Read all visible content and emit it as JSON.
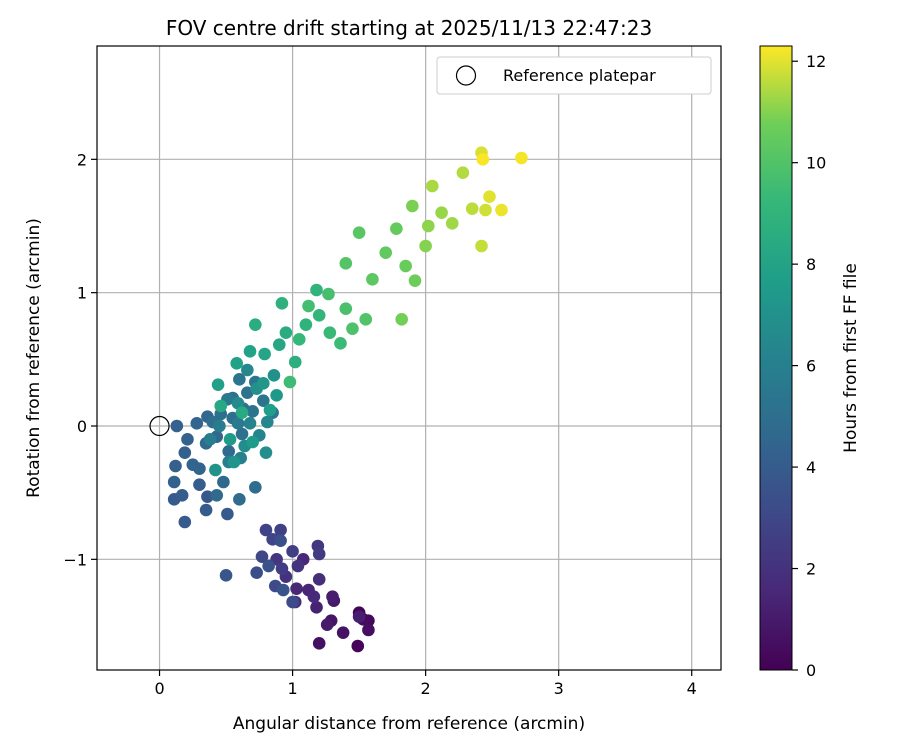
{
  "chart_data": {
    "type": "scatter",
    "title": "FOV centre drift starting at 2025/11/13 22:47:23",
    "xlabel": "Angular distance from reference (arcmin)",
    "ylabel": "Rotation from reference (arcmin)",
    "xlim": [
      -0.47,
      4.22
    ],
    "ylim": [
      -1.83,
      2.85
    ],
    "xticks": [
      0,
      1,
      2,
      3,
      4
    ],
    "yticks": [
      -1,
      0,
      1,
      2
    ],
    "xtick_labels": [
      "0",
      "1",
      "2",
      "3",
      "4"
    ],
    "ytick_labels": [
      "−1",
      "0",
      "1",
      "2"
    ],
    "grid": true,
    "legend": {
      "position": "top-right",
      "label": "Reference platepar"
    },
    "reference_point": {
      "x": 0,
      "y": 0
    },
    "colorbar": {
      "label": "Hours from first FF file",
      "colormap": "viridis",
      "range": [
        0,
        12.3
      ],
      "ticks": [
        0,
        2,
        4,
        6,
        8,
        10,
        12
      ],
      "tick_labels": [
        "0",
        "2",
        "4",
        "6",
        "8",
        "10",
        "12"
      ]
    },
    "points": [
      [
        1.5,
        -1.4,
        0.1
      ],
      [
        1.49,
        -1.65,
        0.2
      ],
      [
        1.57,
        -1.46,
        0.3
      ],
      [
        1.53,
        -1.45,
        0.4
      ],
      [
        1.57,
        -1.53,
        0.5
      ],
      [
        1.2,
        -1.63,
        0.6
      ],
      [
        1.38,
        -1.55,
        0.7
      ],
      [
        1.29,
        -1.46,
        0.8
      ],
      [
        1.31,
        -1.31,
        0.9
      ],
      [
        1.26,
        -1.49,
        1.0
      ],
      [
        1.3,
        -1.28,
        1.1
      ],
      [
        1.5,
        -1.43,
        1.2
      ],
      [
        1.18,
        -1.36,
        1.3
      ],
      [
        1.12,
        -1.23,
        1.4
      ],
      [
        1.03,
        -1.22,
        1.5
      ],
      [
        1.08,
        -1.0,
        1.6
      ],
      [
        1.16,
        -1.28,
        1.7
      ],
      [
        1.2,
        -1.15,
        1.8
      ],
      [
        1.02,
        -1.32,
        1.9
      ],
      [
        0.95,
        -1.13,
        2.0
      ],
      [
        1.04,
        -1.05,
        2.1
      ],
      [
        0.88,
        -1.0,
        2.2
      ],
      [
        1.19,
        -0.9,
        2.3
      ],
      [
        1.2,
        -0.96,
        2.4
      ],
      [
        0.92,
        -1.07,
        2.5
      ],
      [
        1.0,
        -0.94,
        2.6
      ],
      [
        0.91,
        -0.78,
        2.7
      ],
      [
        0.8,
        -0.78,
        2.8
      ],
      [
        0.85,
        -0.85,
        2.9
      ],
      [
        0.77,
        -0.98,
        3.0
      ],
      [
        0.87,
        -1.2,
        3.1
      ],
      [
        1.0,
        -1.32,
        3.2
      ],
      [
        0.73,
        -1.1,
        3.3
      ],
      [
        0.91,
        -0.86,
        3.4
      ],
      [
        0.82,
        -1.05,
        3.5
      ],
      [
        0.93,
        -1.23,
        3.6
      ],
      [
        0.5,
        -1.12,
        3.7
      ],
      [
        0.36,
        -0.53,
        3.8
      ],
      [
        0.51,
        -0.66,
        3.9
      ],
      [
        0.11,
        -0.55,
        3.9
      ],
      [
        0.19,
        -0.72,
        3.95
      ],
      [
        0.35,
        -0.63,
        4.0
      ],
      [
        0.17,
        -0.52,
        4.05
      ],
      [
        0.3,
        -0.44,
        4.1
      ],
      [
        0.12,
        -0.3,
        4.15
      ],
      [
        0.19,
        -0.2,
        4.2
      ],
      [
        0.13,
        0.0,
        4.25
      ],
      [
        0.21,
        -0.1,
        4.3
      ],
      [
        0.11,
        -0.42,
        4.35
      ],
      [
        0.25,
        -0.29,
        4.4
      ],
      [
        0.3,
        -0.32,
        4.45
      ],
      [
        0.28,
        0.02,
        4.5
      ],
      [
        0.36,
        0.07,
        4.55
      ],
      [
        0.43,
        -0.08,
        4.6
      ],
      [
        0.35,
        -0.13,
        4.65
      ],
      [
        0.48,
        -0.42,
        4.7
      ],
      [
        0.52,
        -0.19,
        4.75
      ],
      [
        0.43,
        -0.52,
        4.8
      ],
      [
        0.6,
        -0.55,
        4.85
      ],
      [
        0.72,
        -0.46,
        4.9
      ],
      [
        0.4,
        0.03,
        4.95
      ],
      [
        0.55,
        0.06,
        5.0
      ],
      [
        0.46,
        0.09,
        5.05
      ],
      [
        0.62,
        -0.06,
        5.1
      ],
      [
        0.55,
        0.21,
        5.15
      ],
      [
        0.63,
        0.13,
        5.2
      ],
      [
        0.7,
        0.11,
        5.25
      ],
      [
        0.78,
        0.19,
        5.3
      ],
      [
        0.66,
        0.25,
        5.35
      ],
      [
        0.6,
        0.35,
        5.4
      ],
      [
        0.72,
        0.33,
        5.45
      ],
      [
        0.85,
        0.1,
        5.5
      ],
      [
        0.59,
        0.02,
        5.6
      ],
      [
        0.51,
        0.2,
        5.7
      ],
      [
        0.45,
        0.0,
        5.8
      ],
      [
        0.38,
        -0.1,
        5.9
      ],
      [
        0.52,
        -0.27,
        6.0
      ],
      [
        0.61,
        -0.24,
        6.1
      ],
      [
        0.68,
        0.02,
        6.2
      ],
      [
        0.75,
        -0.07,
        6.3
      ],
      [
        0.81,
        0.03,
        6.4
      ],
      [
        0.66,
        0.42,
        6.5
      ],
      [
        0.59,
        0.17,
        6.6
      ],
      [
        0.64,
        -0.15,
        6.7
      ],
      [
        0.8,
        -0.2,
        6.8
      ],
      [
        0.73,
        0.28,
        6.9
      ],
      [
        0.86,
        0.38,
        7.0
      ],
      [
        0.42,
        -0.33,
        7.1
      ],
      [
        0.56,
        -0.27,
        7.2
      ],
      [
        0.78,
        0.32,
        7.3
      ],
      [
        0.88,
        0.23,
        7.4
      ],
      [
        0.53,
        -0.1,
        7.5
      ],
      [
        0.7,
        -0.12,
        7.6
      ],
      [
        0.83,
        0.12,
        7.7
      ],
      [
        0.44,
        0.31,
        7.8
      ],
      [
        0.58,
        0.47,
        7.9
      ],
      [
        0.68,
        0.56,
        8.0
      ],
      [
        0.79,
        0.54,
        8.1
      ],
      [
        0.9,
        0.61,
        8.2
      ],
      [
        0.46,
        0.15,
        8.3
      ],
      [
        0.62,
        0.1,
        8.4
      ],
      [
        0.95,
        0.7,
        8.5
      ],
      [
        0.72,
        0.76,
        8.6
      ],
      [
        1.02,
        0.48,
        8.7
      ],
      [
        0.92,
        0.92,
        8.8
      ],
      [
        1.1,
        0.76,
        8.9
      ],
      [
        1.18,
        1.02,
        9.0
      ],
      [
        1.2,
        0.83,
        9.1
      ],
      [
        1.05,
        0.65,
        9.2
      ],
      [
        1.28,
        0.7,
        9.3
      ],
      [
        1.36,
        0.62,
        9.4
      ],
      [
        0.98,
        0.33,
        9.5
      ],
      [
        1.12,
        0.9,
        9.6
      ],
      [
        1.27,
        0.99,
        9.7
      ],
      [
        1.4,
        0.88,
        9.8
      ],
      [
        1.45,
        0.73,
        9.9
      ],
      [
        1.55,
        0.8,
        10.0
      ],
      [
        1.4,
        1.22,
        10.1
      ],
      [
        1.5,
        1.45,
        10.2
      ],
      [
        1.6,
        1.1,
        10.3
      ],
      [
        1.7,
        1.3,
        10.4
      ],
      [
        1.78,
        1.48,
        10.5
      ],
      [
        1.85,
        1.2,
        10.6
      ],
      [
        1.92,
        1.09,
        10.7
      ],
      [
        1.82,
        0.8,
        10.8
      ],
      [
        1.9,
        1.65,
        10.9
      ],
      [
        2.0,
        1.35,
        11.0
      ],
      [
        2.02,
        1.5,
        11.1
      ],
      [
        2.12,
        1.6,
        11.2
      ],
      [
        2.2,
        1.52,
        11.3
      ],
      [
        2.05,
        1.8,
        11.4
      ],
      [
        2.28,
        1.9,
        11.5
      ],
      [
        2.35,
        1.63,
        11.6
      ],
      [
        2.42,
        1.35,
        11.7
      ],
      [
        2.45,
        1.62,
        11.8
      ],
      [
        2.42,
        2.05,
        11.9
      ],
      [
        2.48,
        1.72,
        12.0
      ],
      [
        2.57,
        1.62,
        12.1
      ],
      [
        2.72,
        2.01,
        12.2
      ],
      [
        2.43,
        2.0,
        12.25
      ]
    ]
  }
}
